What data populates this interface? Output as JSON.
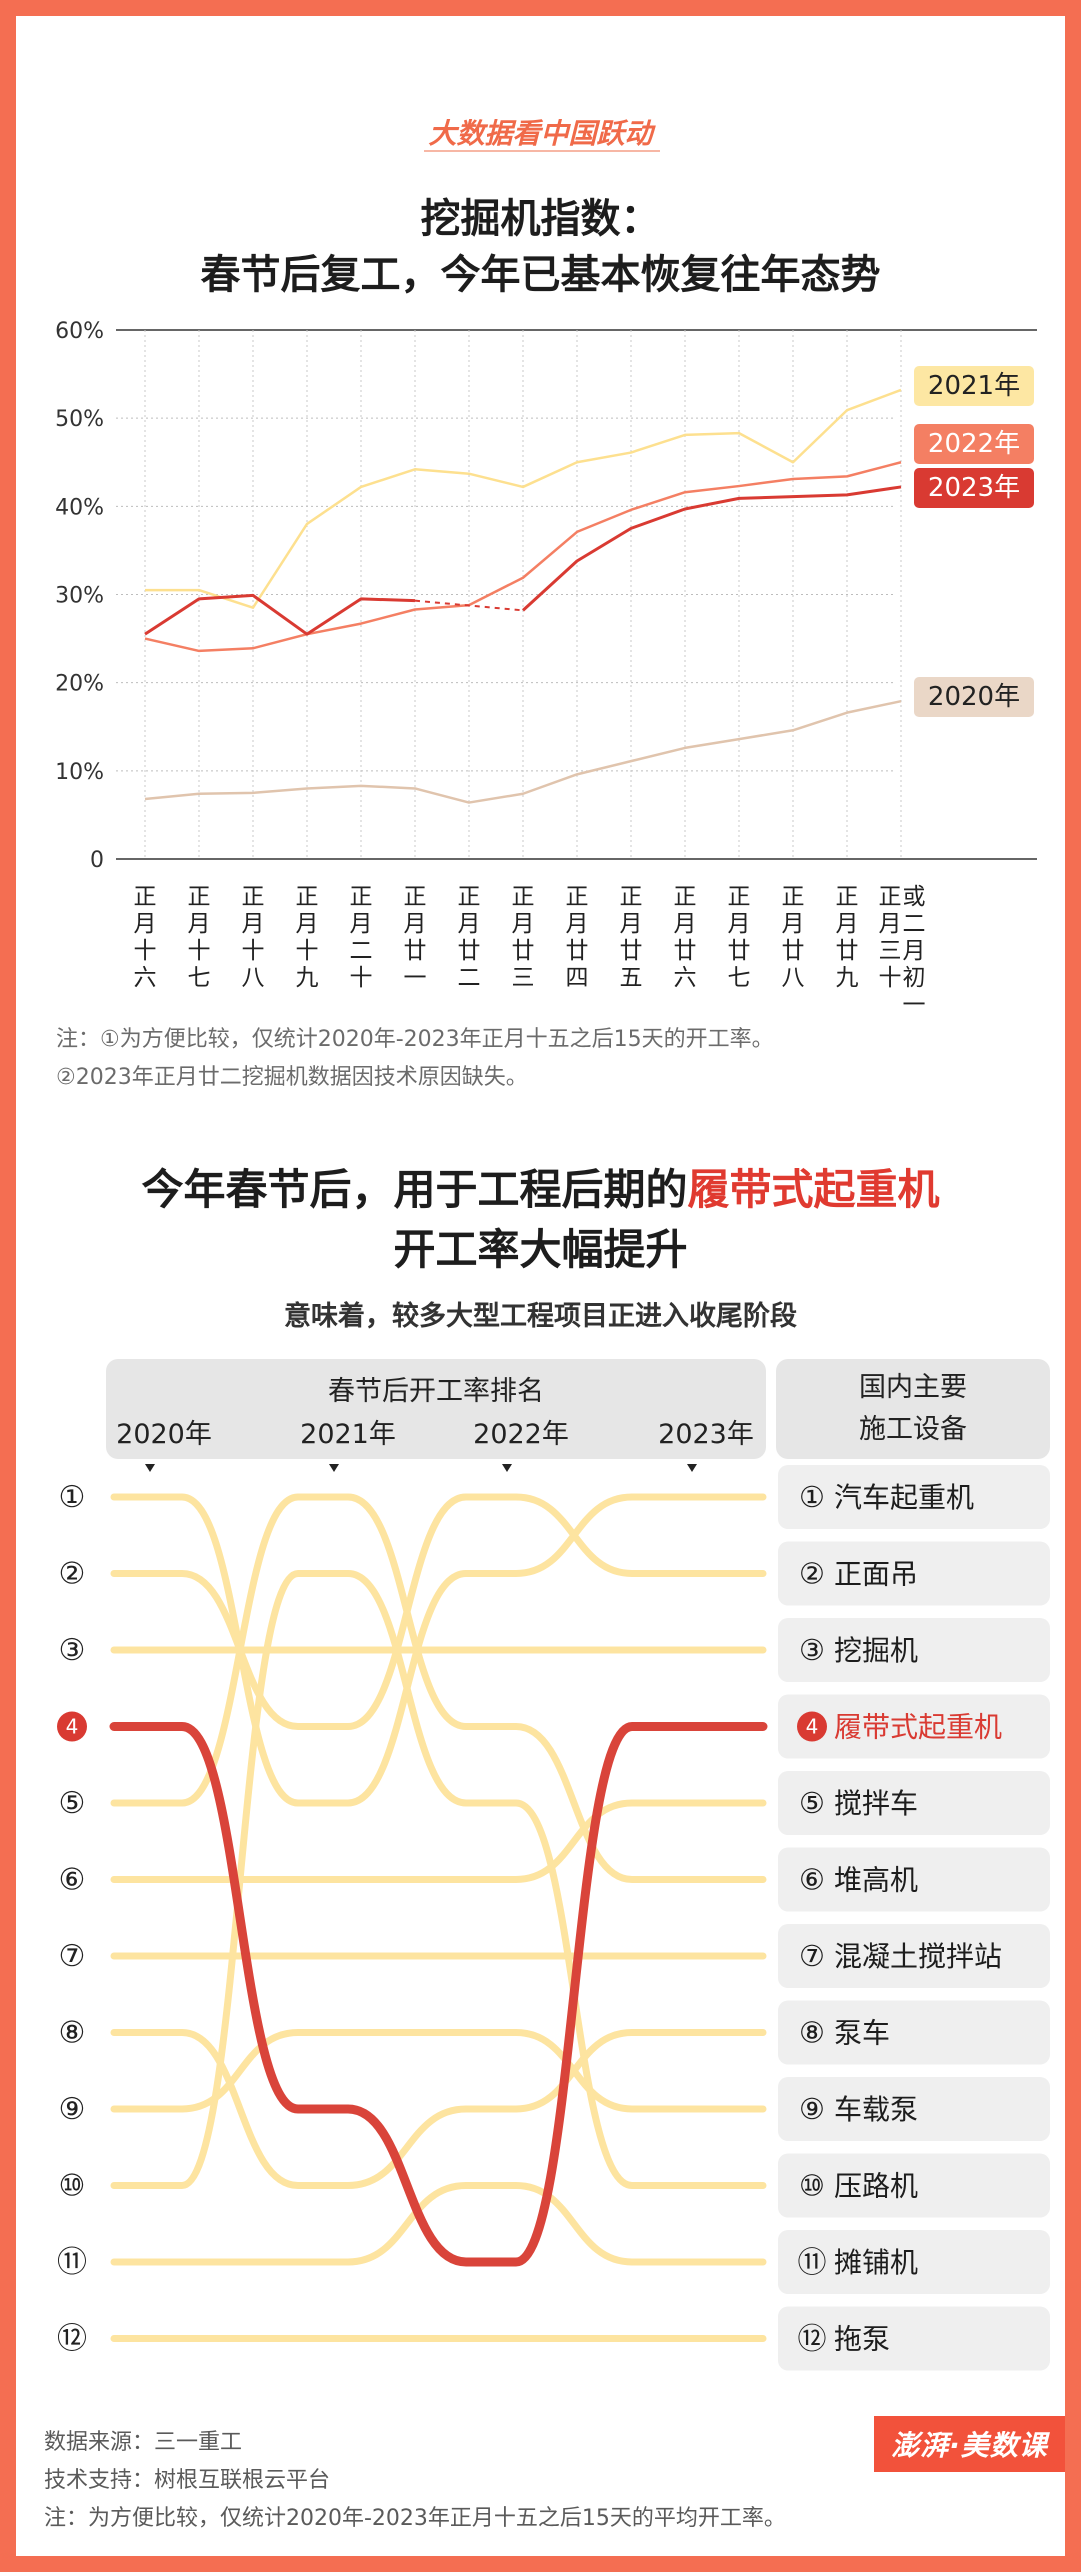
{
  "brand": "大数据看中国跃动",
  "chart1": {
    "title_line1": "挖掘机指数：",
    "title_line2": "春节后复工，今年已基本恢复往年态势",
    "note1": "注：①为方便比较，仅统计2020年-2023年正月十五之后15天的开工率。",
    "note2": "②2023年正月廿二挖掘机数据因技术原因缺失。"
  },
  "chart2": {
    "title_line1_pre": "今年春节后，用于工程后期的",
    "title_line1_hl": "履带式起重机",
    "title_line2": "开工率大幅提升",
    "subtitle": "意味着，较多大型工程项目正进入收尾阶段",
    "ranking_header": "春节后开工率排名",
    "equipment_header_line1": "国内主要",
    "equipment_header_line2": "施工设备"
  },
  "footer": {
    "source": "数据来源：三一重工",
    "tech": "技术支持：树根互联根云平台",
    "note": "注：为方便比较，仅统计2020年-2023年正月十五之后15天的平均开工率。"
  },
  "logo": "澎湃·美数课",
  "colors": {
    "2020": "#e0c4ad",
    "2021": "#fde08f",
    "2022": "#f47f63",
    "2023": "#d93a32",
    "bump": "#fde4a0",
    "highlight": "#d9443a"
  },
  "chart_data": [
    {
      "type": "line",
      "ylim": [
        0,
        60
      ],
      "yticks": [
        "0",
        "10%",
        "20%",
        "30%",
        "40%",
        "50%",
        "60%"
      ],
      "categories": [
        "正月十六",
        "正月十七",
        "正月十八",
        "正月十九",
        "正月二十",
        "正月廿一",
        "正月廿二",
        "正月廿三",
        "正月廿四",
        "正月廿五",
        "正月廿六",
        "正月廿七",
        "正月廿八",
        "正月廿九",
        "正月三十或二月初一"
      ],
      "series": [
        {
          "name": "2021年",
          "values": [
            30.5,
            30.5,
            28.5,
            38,
            42.2,
            44.2,
            43.7,
            42.2,
            45,
            46.1,
            48.1,
            48.3,
            45,
            50.9,
            53.2
          ]
        },
        {
          "name": "2022年",
          "values": [
            25,
            23.6,
            23.9,
            25.5,
            26.7,
            28.3,
            28.8,
            31.9,
            37.1,
            39.6,
            41.6,
            42.3,
            43.1,
            43.4,
            45
          ]
        },
        {
          "name": "2023年",
          "values": [
            25.5,
            29.5,
            29.9,
            25.5,
            29.5,
            29.3,
            null,
            28.2,
            33.8,
            37.5,
            39.7,
            40.9,
            41.1,
            41.3,
            42.2
          ],
          "dashed_gap": [
            5,
            7
          ]
        },
        {
          "name": "2020年",
          "values": [
            6.8,
            7.4,
            7.5,
            8,
            8.3,
            8,
            6.4,
            7.4,
            9.6,
            11.1,
            12.6,
            13.6,
            14.6,
            16.6,
            17.9
          ]
        }
      ]
    },
    {
      "type": "table",
      "years": [
        "2020年",
        "2021年",
        "2022年",
        "2023年"
      ],
      "equipment": [
        "汽车起重机",
        "正面吊",
        "挖掘机",
        "履带式起重机",
        "搅拌车",
        "堆高机",
        "混凝土搅拌站",
        "泵车",
        "车载泵",
        "压路机",
        "摊铺机",
        "拖泵"
      ],
      "rank_labels": [
        "①",
        "②",
        "③",
        "❹",
        "⑤",
        "⑥",
        "⑦",
        "⑧",
        "⑨",
        "⑩",
        "⑪",
        "⑫"
      ],
      "rankings": [
        {
          "equipment": "汽车起重机",
          "ranks": [
            1,
            5,
            2,
            1
          ]
        },
        {
          "equipment": "正面吊",
          "ranks": [
            2,
            4,
            1,
            2
          ]
        },
        {
          "equipment": "挖掘机",
          "ranks": [
            3,
            3,
            3,
            3
          ]
        },
        {
          "equipment": "履带式起重机",
          "ranks": [
            4,
            9,
            11,
            4
          ]
        },
        {
          "equipment": "搅拌车",
          "ranks": [
            5,
            1,
            4,
            6
          ]
        },
        {
          "equipment": "堆高机",
          "ranks": [
            6,
            6,
            6,
            5
          ]
        },
        {
          "equipment": "混凝土搅拌站",
          "ranks": [
            7,
            7,
            7,
            7
          ]
        },
        {
          "equipment": "泵车",
          "ranks": [
            8,
            10,
            9,
            8
          ]
        },
        {
          "equipment": "车载泵",
          "ranks": [
            9,
            8,
            8,
            9
          ]
        },
        {
          "equipment": "压路机",
          "ranks": [
            10,
            2,
            5,
            10
          ]
        },
        {
          "equipment": "摊铺机",
          "ranks": [
            11,
            11,
            10,
            11
          ]
        },
        {
          "equipment": "拖泵",
          "ranks": [
            12,
            12,
            12,
            12
          ]
        }
      ],
      "highlight": "履带式起重机"
    }
  ]
}
